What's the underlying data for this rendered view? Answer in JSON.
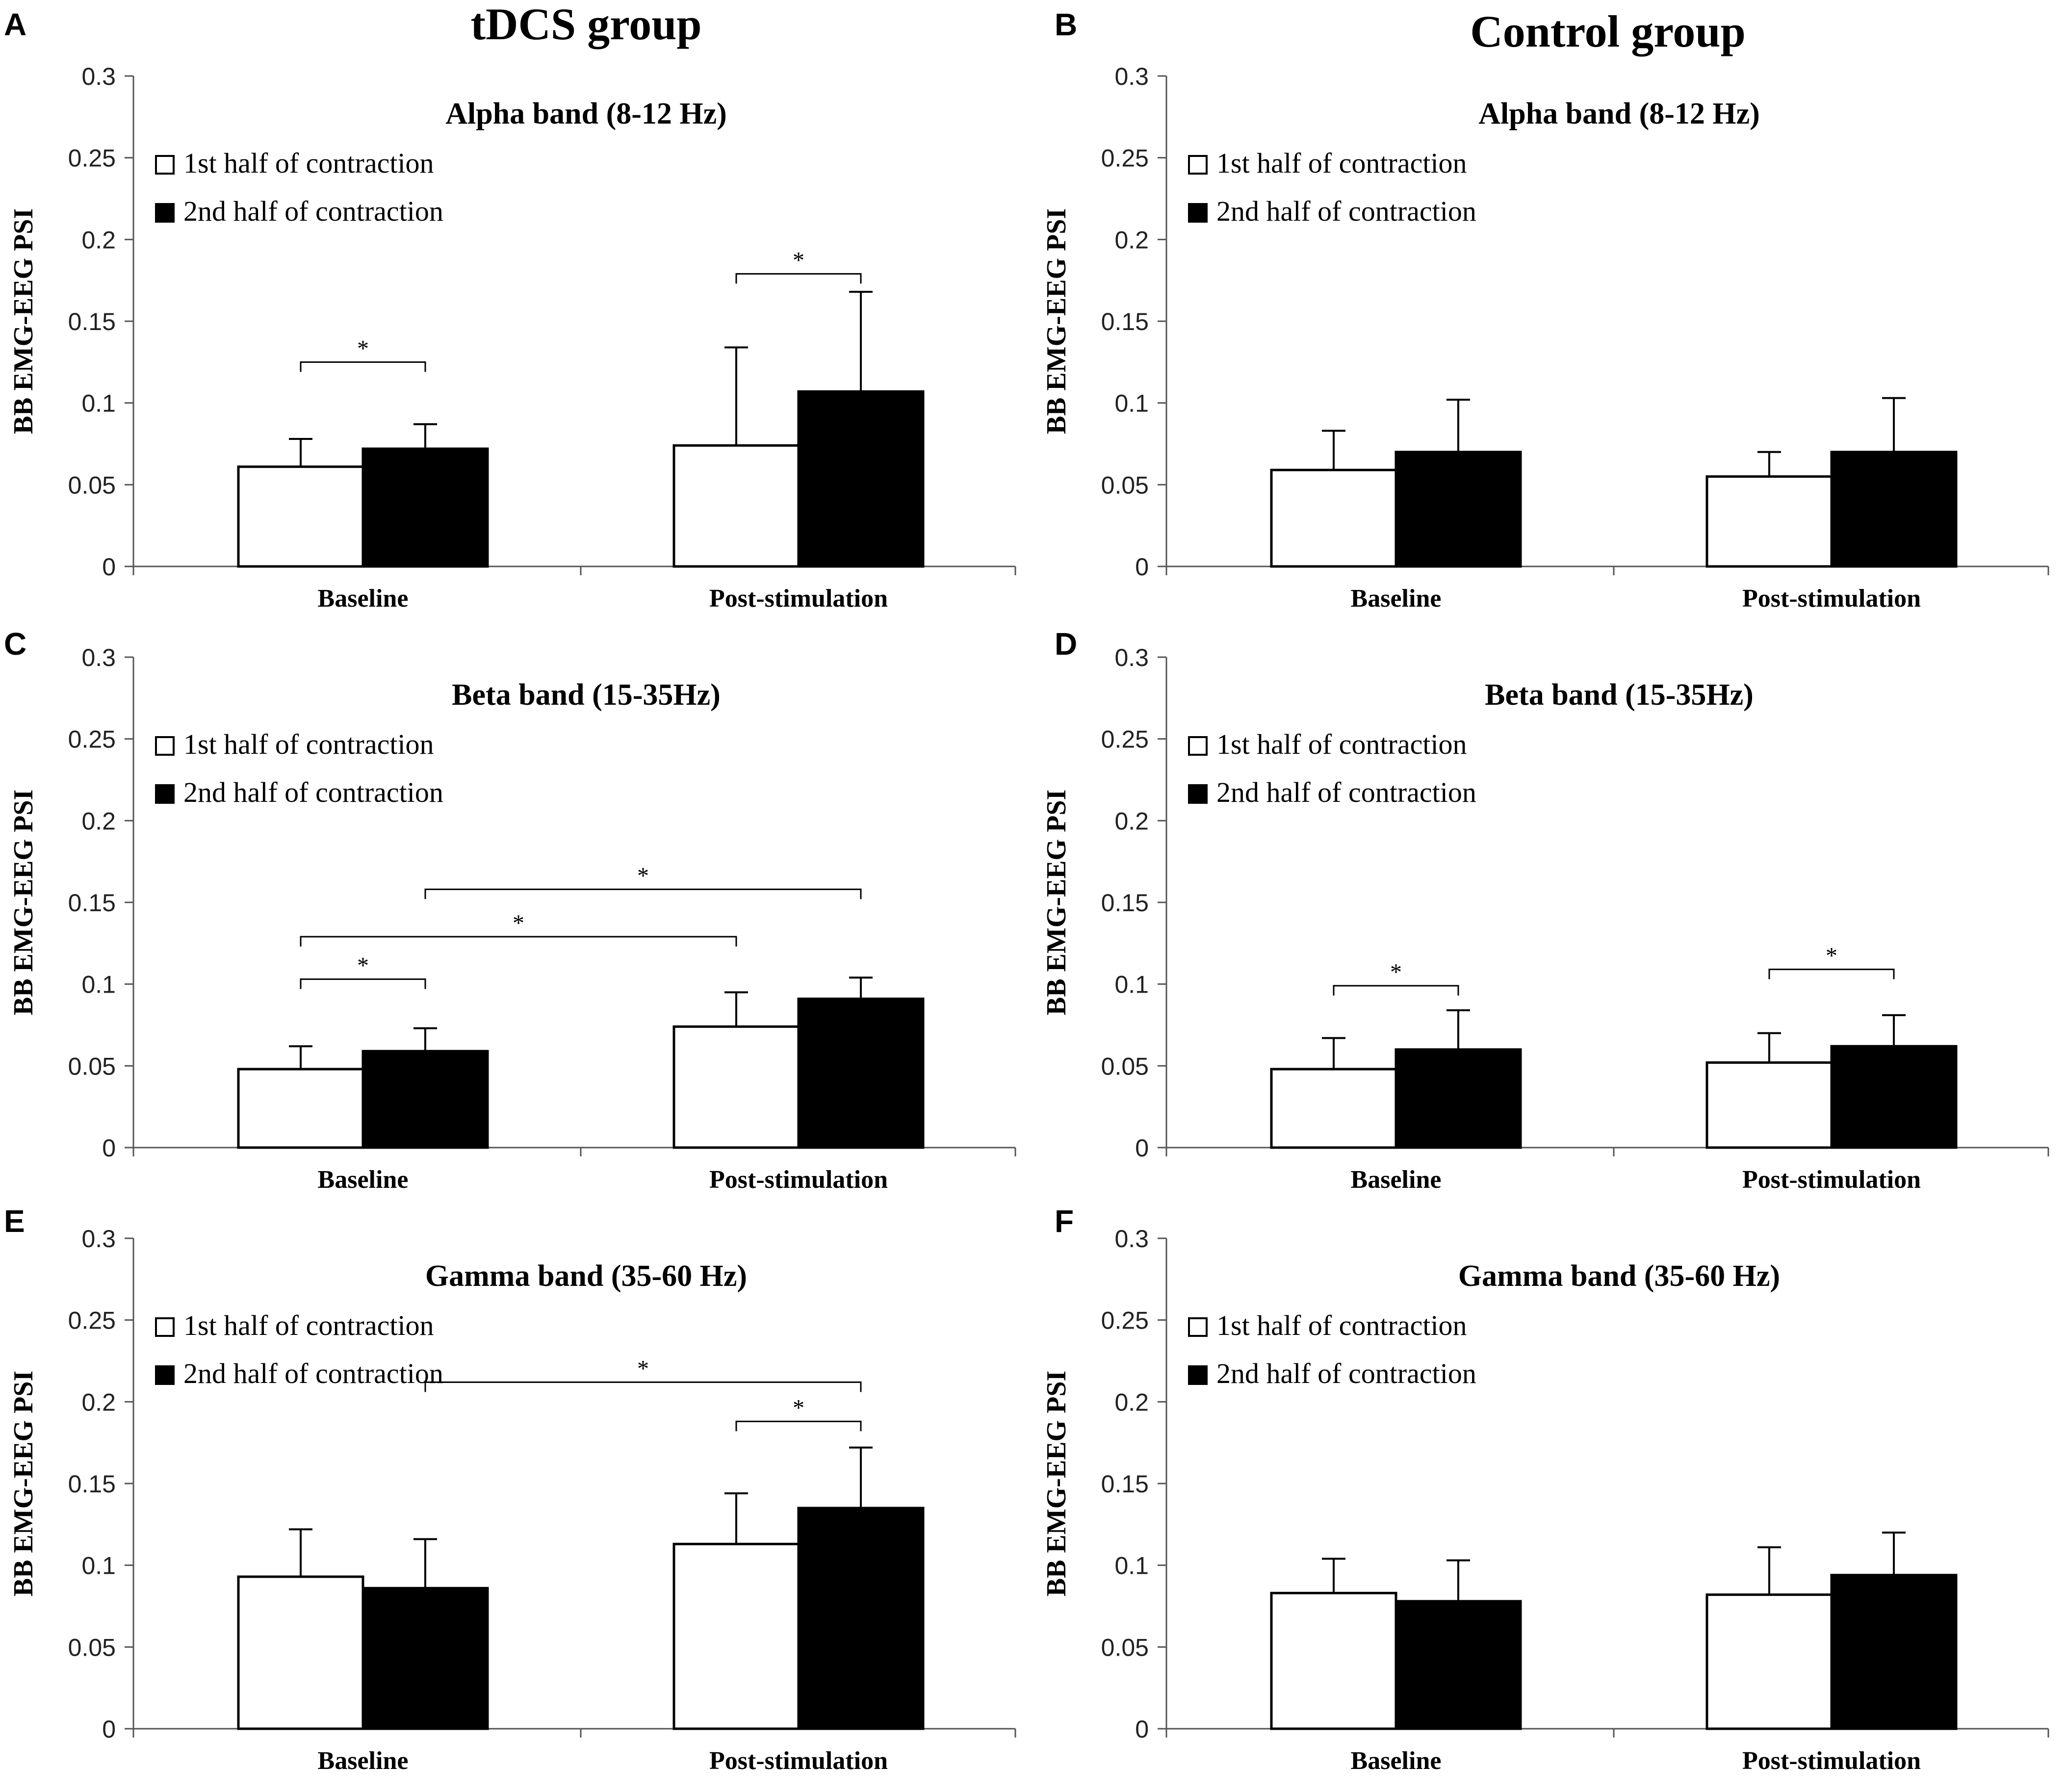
{
  "figure": {
    "group_titles": [
      "tDCS group",
      "Control group"
    ]
  },
  "legend": {
    "first": "1st half of contraction",
    "second": "2nd half of contraction"
  },
  "colors": {
    "first_fill": "#ffffff",
    "second_fill": "#000000",
    "stroke": "#000000"
  },
  "chart_data": [
    {
      "panel": "A",
      "type": "bar",
      "title": "Alpha band (8-12 Hz)",
      "ylabel": "BB EMG-EEG PSI",
      "ylim": [
        0,
        0.3
      ],
      "yticks": [
        "0",
        "0.05",
        "0.1",
        "0.15",
        "0.2",
        "0.25",
        "0.3"
      ],
      "categories": [
        "Baseline",
        "Post-stimulation"
      ],
      "series": [
        {
          "name": "1st half of contraction",
          "values": [
            0.061,
            0.074
          ],
          "errors": [
            0.017,
            0.06
          ]
        },
        {
          "name": "2nd half of contraction",
          "values": [
            0.072,
            0.107
          ],
          "errors": [
            0.015,
            0.061
          ]
        }
      ],
      "significance": [
        {
          "from": [
            0,
            0
          ],
          "to": [
            0,
            1
          ],
          "y": 0.125,
          "label": "*"
        },
        {
          "from": [
            1,
            0
          ],
          "to": [
            1,
            1
          ],
          "y": 0.179,
          "label": "*"
        }
      ]
    },
    {
      "panel": "B",
      "type": "bar",
      "title": "Alpha band (8-12 Hz)",
      "ylabel": "BB EMG-EEG PSI",
      "ylim": [
        0,
        0.3
      ],
      "yticks": [
        "0",
        "0.05",
        "0.1",
        "0.15",
        "0.2",
        "0.25",
        "0.3"
      ],
      "categories": [
        "Baseline",
        "Post-stimulation"
      ],
      "series": [
        {
          "name": "1st half of contraction",
          "values": [
            0.059,
            0.055
          ],
          "errors": [
            0.024,
            0.015
          ]
        },
        {
          "name": "2nd half of contraction",
          "values": [
            0.07,
            0.07
          ],
          "errors": [
            0.032,
            0.033
          ]
        }
      ],
      "significance": []
    },
    {
      "panel": "C",
      "type": "bar",
      "title": "Beta band (15-35Hz)",
      "ylabel": "BB EMG-EEG PSI",
      "ylim": [
        0,
        0.3
      ],
      "yticks": [
        "0",
        "0.05",
        "0.1",
        "0.15",
        "0.2",
        "0.25",
        "0.3"
      ],
      "categories": [
        "Baseline",
        "Post-stimulation"
      ],
      "series": [
        {
          "name": "1st half of contraction",
          "values": [
            0.048,
            0.074
          ],
          "errors": [
            0.014,
            0.021
          ]
        },
        {
          "name": "2nd half of contraction",
          "values": [
            0.059,
            0.091
          ],
          "errors": [
            0.014,
            0.013
          ]
        }
      ],
      "significance": [
        {
          "from": [
            0,
            0
          ],
          "to": [
            0,
            1
          ],
          "y": 0.103,
          "label": "*"
        },
        {
          "from": [
            0,
            0
          ],
          "to": [
            1,
            0
          ],
          "y": 0.129,
          "label": "*"
        },
        {
          "from": [
            0,
            1
          ],
          "to": [
            1,
            1
          ],
          "y": 0.158,
          "label": "*"
        }
      ]
    },
    {
      "panel": "D",
      "type": "bar",
      "title": "Beta band (15-35Hz)",
      "ylabel": "BB EMG-EEG PSI",
      "ylim": [
        0,
        0.3
      ],
      "yticks": [
        "0",
        "0.05",
        "0.1",
        "0.15",
        "0.2",
        "0.25",
        "0.3"
      ],
      "categories": [
        "Baseline",
        "Post-stimulation"
      ],
      "series": [
        {
          "name": "1st half of contraction",
          "values": [
            0.048,
            0.052
          ],
          "errors": [
            0.019,
            0.018
          ]
        },
        {
          "name": "2nd half of contraction",
          "values": [
            0.06,
            0.062
          ],
          "errors": [
            0.024,
            0.019
          ]
        }
      ],
      "significance": [
        {
          "from": [
            0,
            0
          ],
          "to": [
            0,
            1
          ],
          "y": 0.099,
          "label": "*"
        },
        {
          "from": [
            1,
            0
          ],
          "to": [
            1,
            1
          ],
          "y": 0.109,
          "label": "*"
        }
      ]
    },
    {
      "panel": "E",
      "type": "bar",
      "title": "Gamma band (35-60 Hz)",
      "ylabel": "BB EMG-EEG PSI",
      "ylim": [
        0,
        0.3
      ],
      "yticks": [
        "0",
        "0.05",
        "0.1",
        "0.15",
        "0.2",
        "0.25",
        "0.3"
      ],
      "categories": [
        "Baseline",
        "Post-stimulation"
      ],
      "series": [
        {
          "name": "1st half of contraction",
          "values": [
            0.093,
            0.113
          ],
          "errors": [
            0.029,
            0.031
          ]
        },
        {
          "name": "2nd half of contraction",
          "values": [
            0.086,
            0.135
          ],
          "errors": [
            0.03,
            0.037
          ]
        }
      ],
      "significance": [
        {
          "from": [
            0,
            1
          ],
          "to": [
            1,
            1
          ],
          "y": 0.212,
          "label": "*"
        },
        {
          "from": [
            1,
            0
          ],
          "to": [
            1,
            1
          ],
          "y": 0.188,
          "label": "*"
        }
      ]
    },
    {
      "panel": "F",
      "type": "bar",
      "title": "Gamma band (35-60 Hz)",
      "ylabel": "BB EMG-EEG PSI",
      "ylim": [
        0,
        0.3
      ],
      "yticks": [
        "0",
        "0.05",
        "0.1",
        "0.15",
        "0.2",
        "0.25",
        "0.3"
      ],
      "categories": [
        "Baseline",
        "Post-stimulation"
      ],
      "series": [
        {
          "name": "1st half of contraction",
          "values": [
            0.083,
            0.082
          ],
          "errors": [
            0.021,
            0.029
          ]
        },
        {
          "name": "2nd half of contraction",
          "values": [
            0.078,
            0.094
          ],
          "errors": [
            0.025,
            0.026
          ]
        }
      ],
      "significance": []
    }
  ]
}
